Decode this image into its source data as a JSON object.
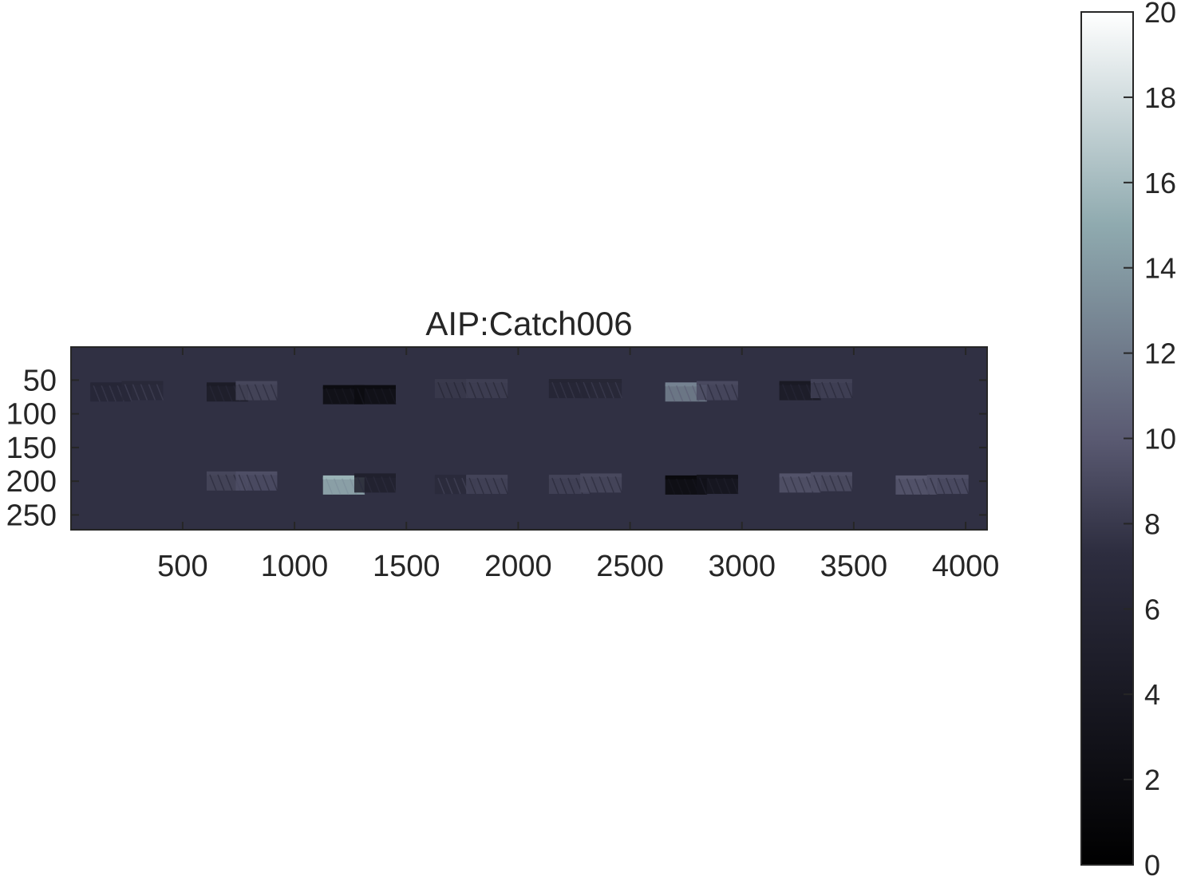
{
  "chart_data": {
    "type": "heatmap",
    "title": "AIP:Catch006",
    "xlabel": "",
    "ylabel": "",
    "xlim": [
      1,
      4096
    ],
    "ylim": [
      1,
      272
    ],
    "y_direction": "reversed",
    "background_value": 7.5,
    "x_ticks": [
      500,
      1000,
      1500,
      2000,
      2500,
      3000,
      3500,
      4000
    ],
    "x_tick_labels": [
      "500",
      "1000",
      "1500",
      "2000",
      "2500",
      "3000",
      "3500",
      "4000"
    ],
    "y_ticks": [
      50,
      100,
      150,
      200,
      250
    ],
    "y_tick_labels": [
      "50",
      "100",
      "150",
      "200",
      "250"
    ],
    "colormap": "bone",
    "colorbar": {
      "position": "right",
      "range": [
        0,
        20
      ],
      "ticks": [
        0,
        2,
        4,
        6,
        8,
        10,
        12,
        14,
        16,
        18,
        20
      ],
      "tick_labels": [
        "0",
        "2",
        "4",
        "6",
        "8",
        "10",
        "12",
        "14",
        "16",
        "18",
        "20"
      ]
    },
    "patches": [
      {
        "x": 180,
        "y": 70,
        "value": 6.2
      },
      {
        "x": 320,
        "y": 68,
        "value": 6.6
      },
      {
        "x": 700,
        "y": 202,
        "value": 8.8
      },
      {
        "x": 830,
        "y": 202,
        "value": 9.3
      },
      {
        "x": 700,
        "y": 70,
        "value": 4.5
      },
      {
        "x": 830,
        "y": 68,
        "value": 8.8
      },
      {
        "x": 1220,
        "y": 208,
        "value": 15.5
      },
      {
        "x": 1360,
        "y": 205,
        "value": 5.2
      },
      {
        "x": 1220,
        "y": 74,
        "value": 2.0
      },
      {
        "x": 1360,
        "y": 74,
        "value": 2.0
      },
      {
        "x": 1720,
        "y": 207,
        "value": 6.8
      },
      {
        "x": 1860,
        "y": 207,
        "value": 8.6
      },
      {
        "x": 1720,
        "y": 65,
        "value": 8.0
      },
      {
        "x": 1860,
        "y": 65,
        "value": 8.3
      },
      {
        "x": 2230,
        "y": 207,
        "value": 8.6
      },
      {
        "x": 2370,
        "y": 205,
        "value": 8.9
      },
      {
        "x": 2230,
        "y": 65,
        "value": 6.0
      },
      {
        "x": 2370,
        "y": 65,
        "value": 6.3
      },
      {
        "x": 2750,
        "y": 208,
        "value": 1.5
      },
      {
        "x": 2890,
        "y": 207,
        "value": 3.0
      },
      {
        "x": 2750,
        "y": 70,
        "value": 12.5
      },
      {
        "x": 2890,
        "y": 68,
        "value": 9.0
      },
      {
        "x": 3260,
        "y": 205,
        "value": 9.6
      },
      {
        "x": 3400,
        "y": 203,
        "value": 9.2
      },
      {
        "x": 3260,
        "y": 68,
        "value": 4.2
      },
      {
        "x": 3400,
        "y": 65,
        "value": 8.5
      },
      {
        "x": 3780,
        "y": 208,
        "value": 9.8
      },
      {
        "x": 3920,
        "y": 207,
        "value": 9.3
      }
    ]
  }
}
